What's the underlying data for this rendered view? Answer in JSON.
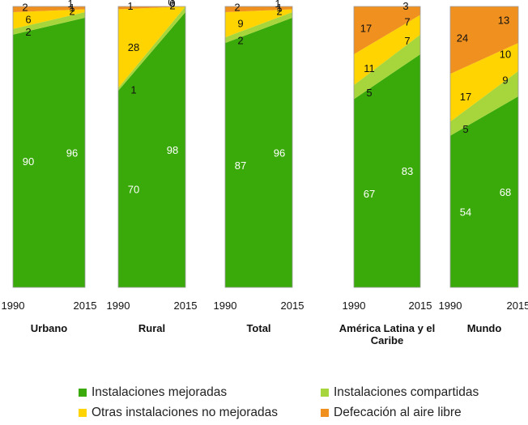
{
  "colors": {
    "mejoradas": "#3aaa0a",
    "compartidas": "#a6d63c",
    "no_mejoradas": "#ffd400",
    "aire_libre": "#f0901e"
  },
  "chart_data": {
    "type": "area",
    "ylim": [
      0,
      100
    ],
    "x": [
      "1990",
      "2015"
    ],
    "series_order": [
      "Instalaciones mejoradas",
      "Instalaciones compartidas",
      "Otras instalaciones no mejoradas",
      "Defecación al aire libre"
    ],
    "panels": [
      {
        "name": "Urbano",
        "series": [
          {
            "name": "Instalaciones mejoradas",
            "values": [
              90,
              96
            ],
            "labels": [
              "90",
              "96"
            ]
          },
          {
            "name": "Instalaciones compartidas",
            "values": [
              2,
              2
            ],
            "labels": [
              "2",
              "2"
            ]
          },
          {
            "name": "Otras instalaciones no mejoradas",
            "values": [
              6,
              1
            ],
            "labels": [
              "6",
              "1"
            ]
          },
          {
            "name": "Defecación al aire libre",
            "values": [
              2,
              1
            ],
            "labels": [
              "2",
              "1"
            ]
          }
        ]
      },
      {
        "name": "Rural",
        "series": [
          {
            "name": "Instalaciones mejoradas",
            "values": [
              70,
              98
            ],
            "labels": [
              "70",
              "98"
            ]
          },
          {
            "name": "Instalaciones compartidas",
            "values": [
              1,
              2
            ],
            "labels": [
              "1",
              "2"
            ]
          },
          {
            "name": "Otras instalaciones no mejoradas",
            "values": [
              28,
              0
            ],
            "labels": [
              "28",
              "0"
            ]
          },
          {
            "name": "Defecación al aire libre",
            "values": [
              1,
              0
            ],
            "labels": [
              "1",
              "0"
            ]
          }
        ]
      },
      {
        "name": "Total",
        "series": [
          {
            "name": "Instalaciones mejoradas",
            "values": [
              87,
              96
            ],
            "labels": [
              "87",
              "96"
            ]
          },
          {
            "name": "Instalaciones compartidas",
            "values": [
              2,
              2
            ],
            "labels": [
              "2",
              "2"
            ]
          },
          {
            "name": "Otras instalaciones no mejoradas",
            "values": [
              9,
              1
            ],
            "labels": [
              "9",
              "1"
            ]
          },
          {
            "name": "Defecación al aire libre",
            "values": [
              2,
              1
            ],
            "labels": [
              "2",
              "1"
            ]
          }
        ]
      },
      {
        "name": "América Latina y el Caribe",
        "series": [
          {
            "name": "Instalaciones mejoradas",
            "values": [
              67,
              83
            ],
            "labels": [
              "67",
              "83"
            ]
          },
          {
            "name": "Instalaciones compartidas",
            "values": [
              5,
              7
            ],
            "labels": [
              "5",
              "7"
            ]
          },
          {
            "name": "Otras instalaciones no mejoradas",
            "values": [
              11,
              7
            ],
            "labels": [
              "11",
              "7"
            ]
          },
          {
            "name": "Defecación al aire libre",
            "values": [
              17,
              3
            ],
            "labels": [
              "17",
              "3"
            ]
          }
        ]
      },
      {
        "name": "Mundo",
        "series": [
          {
            "name": "Instalaciones mejoradas",
            "values": [
              54,
              68
            ],
            "labels": [
              "54",
              "68"
            ]
          },
          {
            "name": "Instalaciones compartidas",
            "values": [
              5,
              9
            ],
            "labels": [
              "5",
              "9"
            ]
          },
          {
            "name": "Otras instalaciones no mejoradas",
            "values": [
              17,
              10
            ],
            "labels": [
              "17",
              "10"
            ]
          },
          {
            "name": "Defecación al aire libre",
            "values": [
              24,
              13
            ],
            "labels": [
              "24",
              "13"
            ]
          }
        ]
      }
    ],
    "legend": [
      "Instalaciones mejoradas",
      "Instalaciones compartidas",
      "Otras instalaciones no mejoradas",
      "Defecación al aire libre"
    ],
    "legend_position": "bottom"
  }
}
